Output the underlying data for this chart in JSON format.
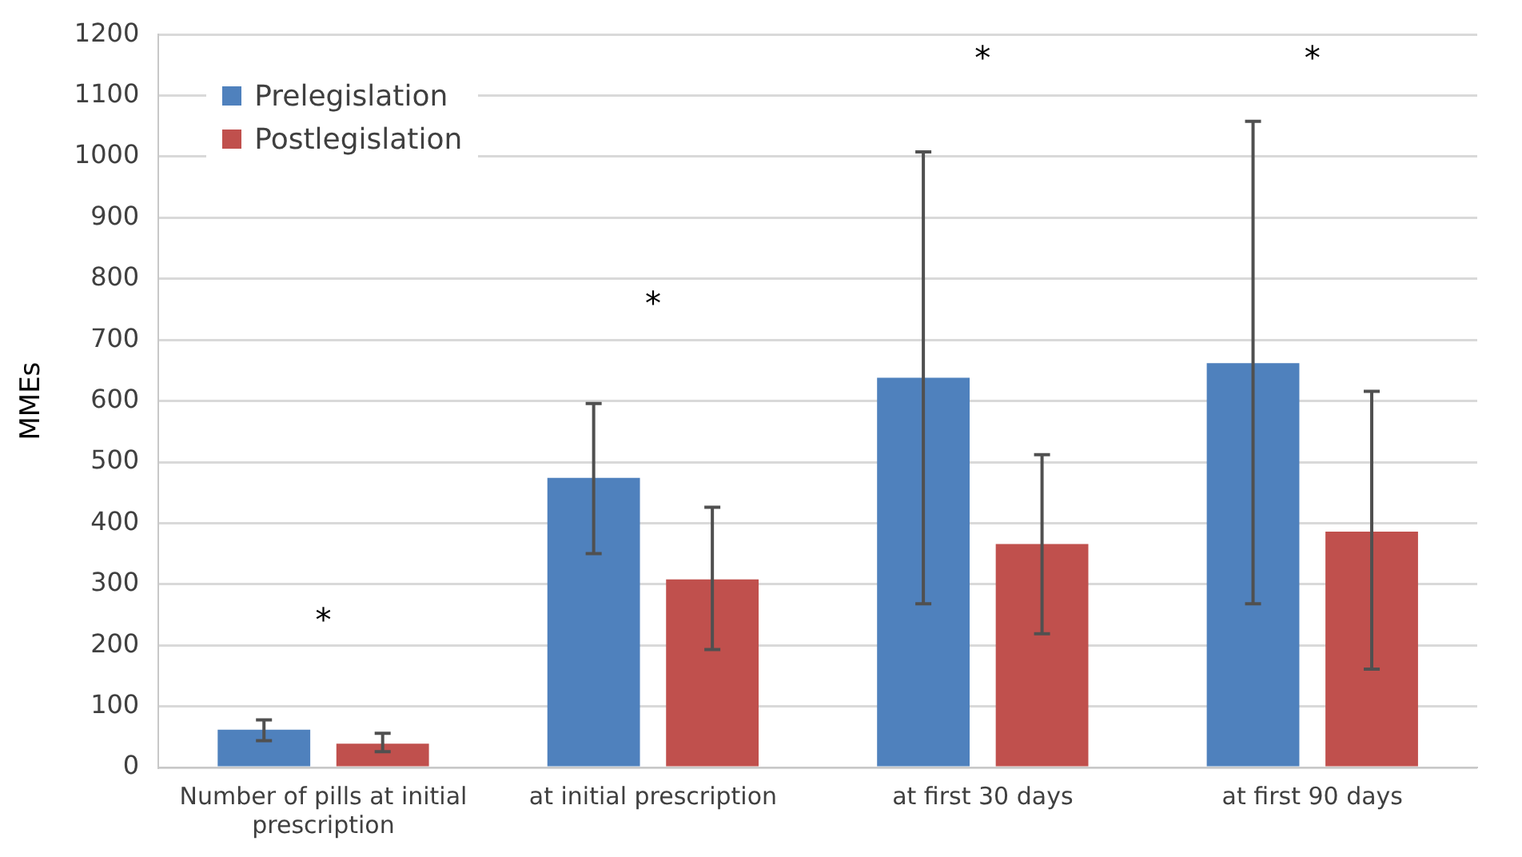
{
  "chart_data": {
    "type": "bar",
    "ylabel": "MMEs",
    "categories": [
      "Number of pills at initial prescription",
      "at initial prescription",
      "at first 30 days",
      "at first 90 days"
    ],
    "series": [
      {
        "name": "Prelegislation",
        "color": "#4f81bd",
        "values": [
          62,
          474,
          638,
          662
        ],
        "errors": [
          [
            44,
            78
          ],
          [
            350,
            596
          ],
          [
            268,
            1008
          ],
          [
            268,
            1058
          ]
        ]
      },
      {
        "name": "Postlegislation",
        "color": "#c0504d",
        "values": [
          39,
          308,
          366,
          386
        ],
        "errors": [
          [
            26,
            56
          ],
          [
            193,
            426
          ],
          [
            219,
            512
          ],
          [
            161,
            616
          ]
        ]
      }
    ],
    "ylim": [
      0,
      1200
    ],
    "yticks": [
      0,
      100,
      200,
      300,
      400,
      500,
      600,
      700,
      800,
      900,
      1000,
      1100,
      1200
    ],
    "grid": "y",
    "legend": "top left",
    "annotations": [
      "*",
      "*",
      "*",
      "*"
    ]
  }
}
